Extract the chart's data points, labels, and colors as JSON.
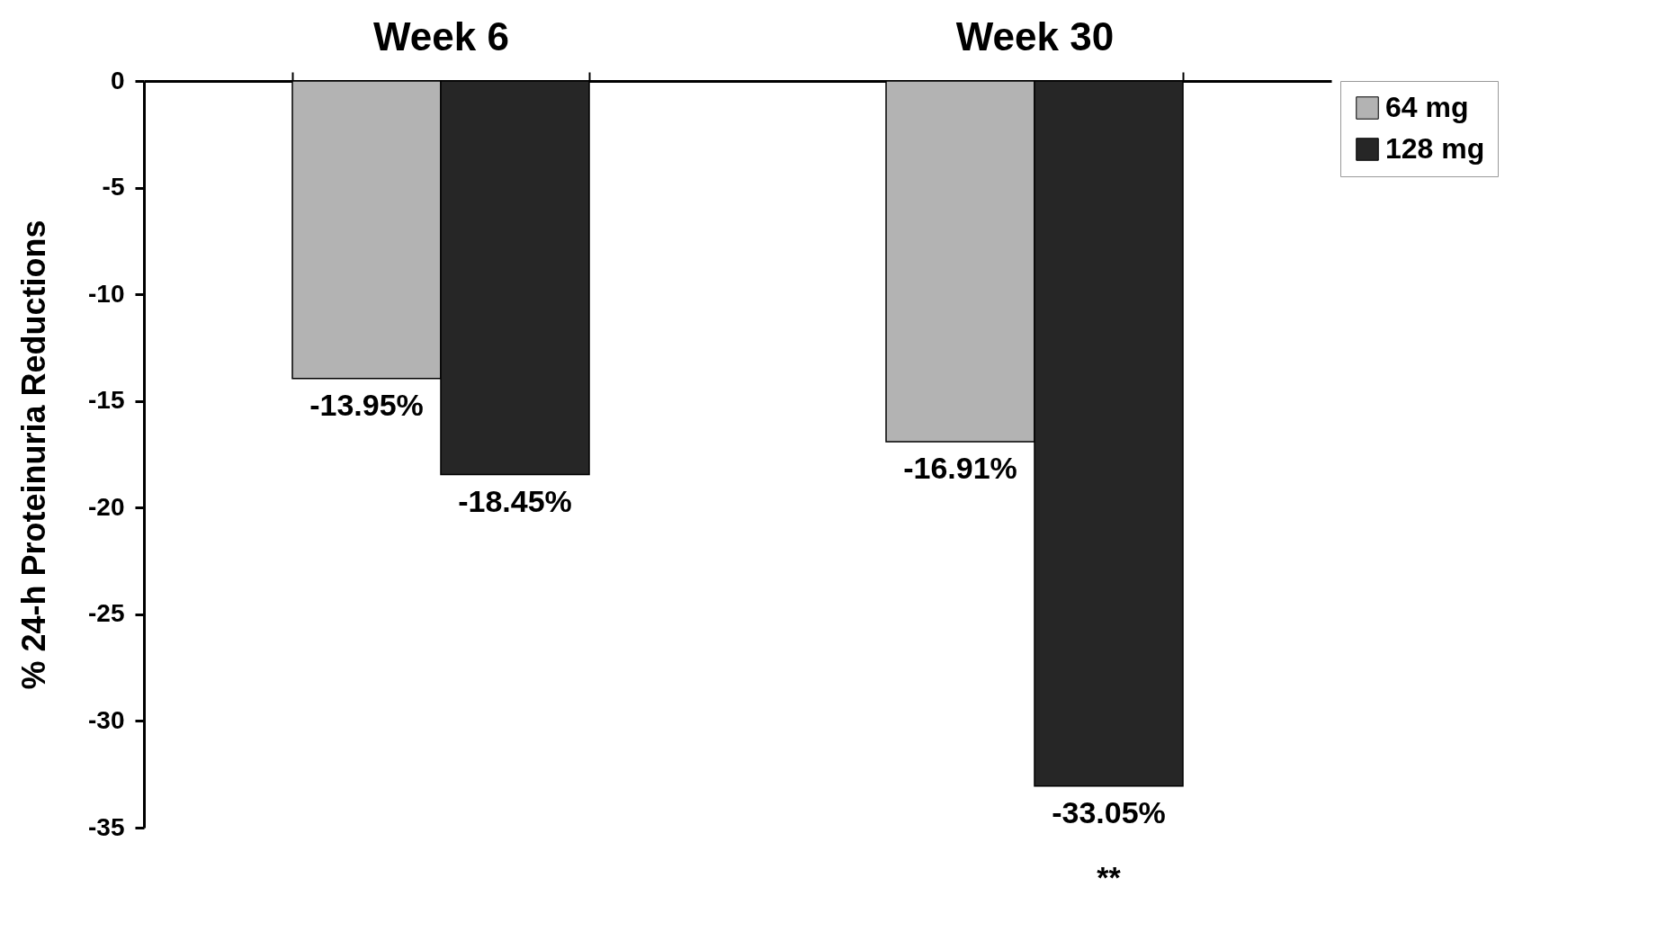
{
  "chart_data": {
    "type": "bar",
    "ylabel": "% 24-h Proteinuria Reductions",
    "categories": [
      "Week 6",
      "Week 30"
    ],
    "series": [
      {
        "name": "64 mg",
        "color": "#b3b3b3",
        "values": [
          -13.95,
          -16.91
        ],
        "value_labels": [
          "-13.95%",
          "-16.91%"
        ]
      },
      {
        "name": "128 mg",
        "color": "#262626",
        "values": [
          -18.45,
          -33.05
        ],
        "value_labels": [
          "-18.45%",
          "-33.05%"
        ]
      }
    ],
    "ylim": [
      -35,
      0
    ],
    "yticks": [
      0,
      -5,
      -10,
      -15,
      -20,
      -25,
      -30,
      -35
    ],
    "grid": false,
    "legend": "right",
    "annotations": [
      "**"
    ]
  }
}
